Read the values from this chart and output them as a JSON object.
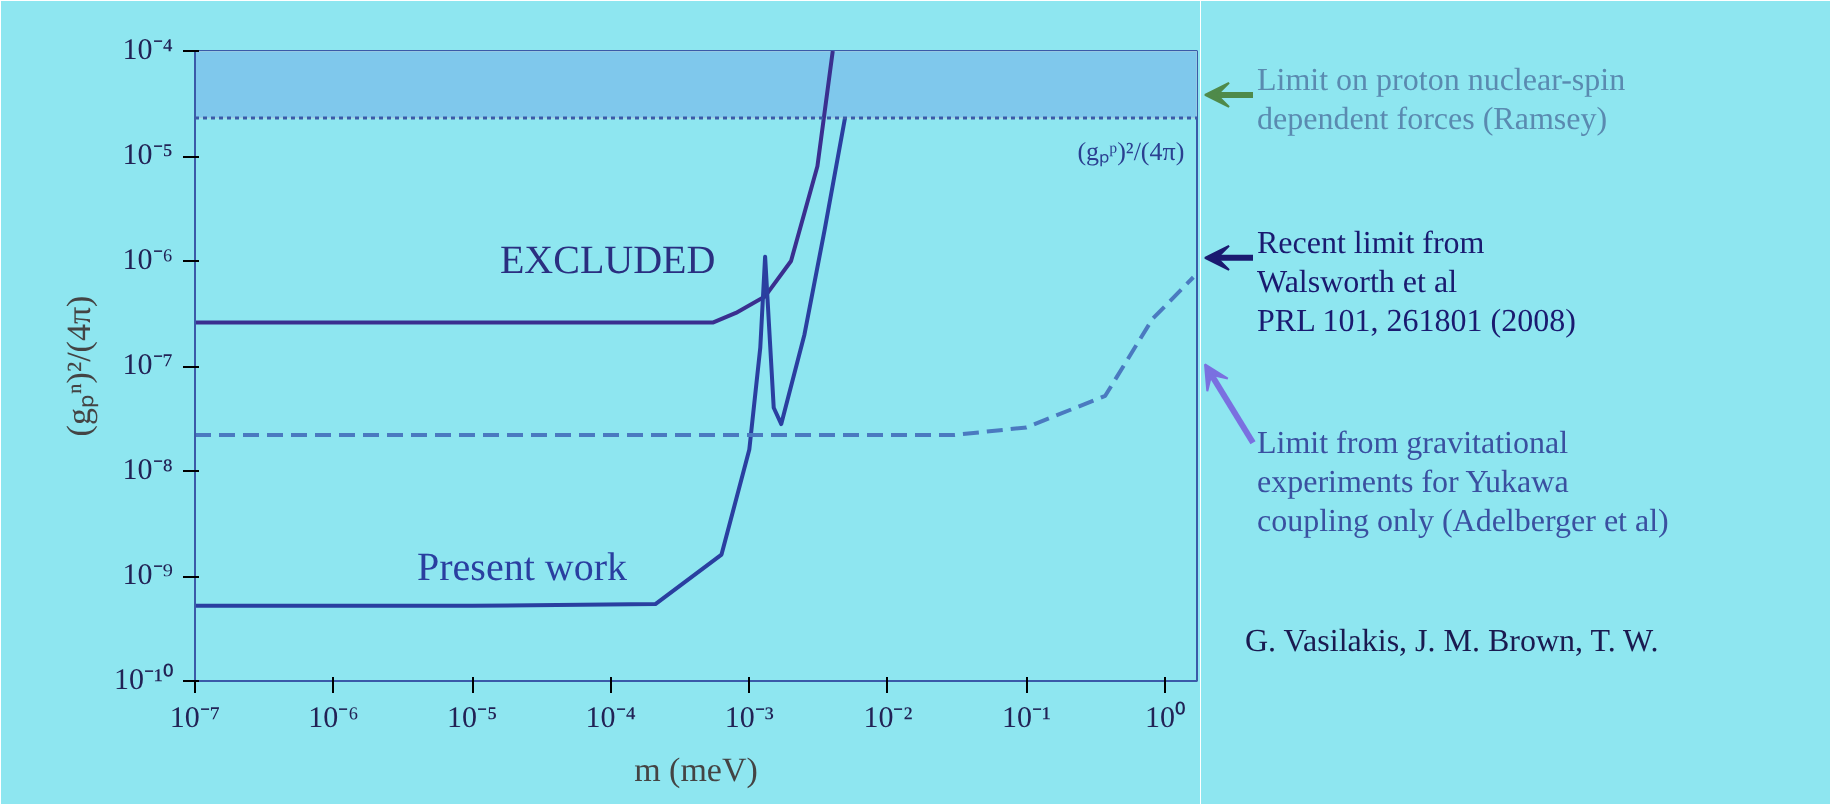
{
  "chart_data": {
    "type": "line",
    "xlabel": "m (meV)",
    "ylabel": "(gₚⁿ)²/(4π)",
    "log": "xy",
    "grid": false,
    "line_style": "solid",
    "marker": "none",
    "xlim": [
      1e-07,
      1.7
    ],
    "ylim": [
      1e-10,
      0.0001
    ],
    "xticks": [
      {
        "value": 1e-07,
        "label": "10⁻⁷"
      },
      {
        "value": 1e-06,
        "label": "10⁻⁶"
      },
      {
        "value": 1e-05,
        "label": "10⁻⁵"
      },
      {
        "value": 0.0001,
        "label": "10⁻⁴"
      },
      {
        "value": 0.001,
        "label": "10⁻³"
      },
      {
        "value": 0.01,
        "label": "10⁻²"
      },
      {
        "value": 0.1,
        "label": "10⁻¹"
      },
      {
        "value": 1,
        "label": "10⁰"
      }
    ],
    "yticks": [
      {
        "value": 1e-10,
        "label": "10⁻¹⁰"
      },
      {
        "value": 1e-09,
        "label": "10⁻⁹"
      },
      {
        "value": 1e-08,
        "label": "10⁻⁸"
      },
      {
        "value": 1e-07,
        "label": "10⁻⁷"
      },
      {
        "value": 1e-06,
        "label": "10⁻⁶"
      },
      {
        "value": 1e-05,
        "label": "10⁻⁵"
      },
      {
        "value": 0.0001,
        "label": "10⁻⁴"
      }
    ],
    "series": [
      {
        "color": "#3a2f8f",
        "x": [
          1e-07,
          1e-05,
          0.00055,
          0.0008,
          0.0013,
          0.002,
          0.0031,
          0.004
        ],
        "values": [
          2.6e-07,
          2.6e-07,
          2.6e-07,
          3.2e-07,
          4.6e-07,
          1e-06,
          8e-06,
          0.0001
        ]
      },
      {
        "name": "Present work",
        "color": "#2a3fa0",
        "x": [
          1e-07,
          1e-05,
          0.00021,
          0.00063,
          0.001,
          0.0012,
          0.0013,
          0.0015,
          0.0017,
          0.0025,
          0.0035,
          0.0049
        ],
        "values": [
          5.2e-10,
          5.2e-10,
          5.4e-10,
          1.6e-09,
          1.6e-08,
          1.5e-07,
          1.1e-06,
          4e-08,
          2.8e-08,
          2e-07,
          2e-06,
          2.3e-05
        ]
      },
      {
        "color": "#4a7ac0",
        "line_style": "dashed",
        "x": [
          1e-07,
          0.001,
          0.03,
          0.1,
          0.37,
          0.81,
          1.6
        ],
        "values": [
          2.2e-08,
          2.2e-08,
          2.2e-08,
          2.6e-08,
          5.2e-08,
          2.8e-07,
          7e-07
        ]
      }
    ],
    "ref_lines": [
      {
        "axis": "y",
        "value": 2.3e-05,
        "label": "(gₚᵖ)²/(4π)",
        "color": "#3a5aa8",
        "line_style": "dotted"
      }
    ],
    "bands": [
      {
        "axis": "y",
        "from": 2.3e-05,
        "to": 0.0001,
        "color": "#7fc8ec"
      }
    ],
    "annotations": [
      "EXCLUDED",
      "Limit on proton nuclear-spin\ndependent forces (Ramsey)",
      "Recent limit from\nWalsworth et al\nPRL 101, 261801 (2008)",
      "Limit from gravitational\nexperiments for Yukawa\ncoupling only (Adelberger et al)",
      "G. Vasilakis, J. M. Brown, T. W."
    ]
  }
}
